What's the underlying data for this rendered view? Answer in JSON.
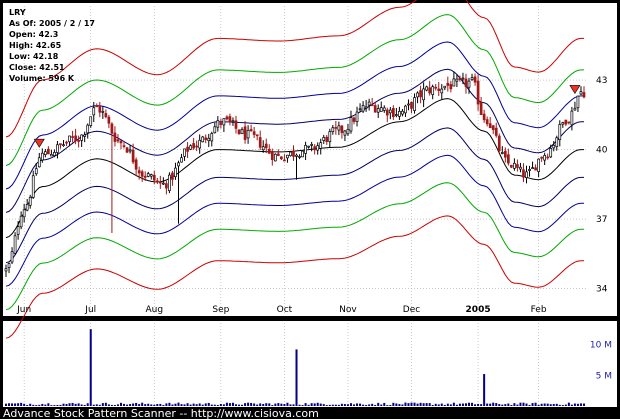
{
  "title": "LRY",
  "info": {
    "as_of": "As Of: 2005 / 2 / 17",
    "open": "Open: 42.3",
    "high": "High: 42.65",
    "low": "Low: 42.18",
    "close": "Close: 42.51",
    "volume": "Volume: 596 K"
  },
  "footer": "Advance Stock Pattern Scanner -- http://www.cisiova.com",
  "colors": {
    "background": "#000000",
    "panel": "#ffffff",
    "grid": "#aaaaaa",
    "candle_up": "#000000",
    "candle_down": "#a01818",
    "inner_band": "#000066",
    "mid_band": "#000099",
    "green_band": "#00aa00",
    "red_band": "#cc0000",
    "marker": "#ee3322",
    "volume_bar": "#000088"
  },
  "chart_data": {
    "type": "candlestick",
    "xlabel": "",
    "ylabel": "",
    "x_tick_labels": [
      "Jun",
      "Jul",
      "Aug",
      "Sep",
      "Oct",
      "Nov",
      "Dec",
      "2005",
      "Feb"
    ],
    "x_tick_index": [
      6,
      28,
      49,
      71,
      92,
      113,
      134,
      156,
      176
    ],
    "y_ticks": [
      34,
      37,
      40,
      43
    ],
    "ylim": [
      32.9,
      46.2
    ],
    "volume_ticks": [
      {
        "label": "5 M",
        "value": 5
      },
      {
        "label": "10 M",
        "value": 10
      }
    ],
    "volume_ylim": [
      0,
      13.5
    ],
    "band_offsets_pct": [
      3.0,
      5.8,
      8.6,
      12.0
    ],
    "center_line_anchors": [
      [
        0,
        36.2
      ],
      [
        12,
        38.4
      ],
      [
        30,
        39.6
      ],
      [
        50,
        38.6
      ],
      [
        70,
        40.0
      ],
      [
        90,
        39.9
      ],
      [
        110,
        40.1
      ],
      [
        130,
        41.2
      ],
      [
        146,
        42.2
      ],
      [
        158,
        40.8
      ],
      [
        168,
        38.9
      ],
      [
        176,
        38.7
      ],
      [
        190,
        40.0
      ]
    ],
    "close_anchors": [
      [
        0,
        34.8
      ],
      [
        6,
        37.5
      ],
      [
        12,
        39.8
      ],
      [
        24,
        40.5
      ],
      [
        30,
        41.8
      ],
      [
        38,
        40.3
      ],
      [
        46,
        38.9
      ],
      [
        52,
        38.5
      ],
      [
        62,
        40.2
      ],
      [
        72,
        41.2
      ],
      [
        80,
        40.6
      ],
      [
        90,
        39.7
      ],
      [
        100,
        40.0
      ],
      [
        110,
        40.8
      ],
      [
        120,
        41.9
      ],
      [
        130,
        41.6
      ],
      [
        140,
        42.6
      ],
      [
        148,
        42.8
      ],
      [
        154,
        42.9
      ],
      [
        158,
        41.4
      ],
      [
        166,
        39.4
      ],
      [
        172,
        38.9
      ],
      [
        178,
        39.8
      ],
      [
        186,
        41.4
      ],
      [
        190,
        42.5
      ]
    ],
    "range_pct": 1.5,
    "outliers": [
      [
        35,
        36.4
      ],
      [
        57,
        36.8
      ],
      [
        96,
        38.7
      ]
    ],
    "sell_marker_index": [
      11,
      188
    ],
    "volume_spikes": [
      [
        28,
        12.5
      ],
      [
        96,
        9.2
      ],
      [
        158,
        5.2
      ]
    ],
    "volume_base": 0.35
  }
}
